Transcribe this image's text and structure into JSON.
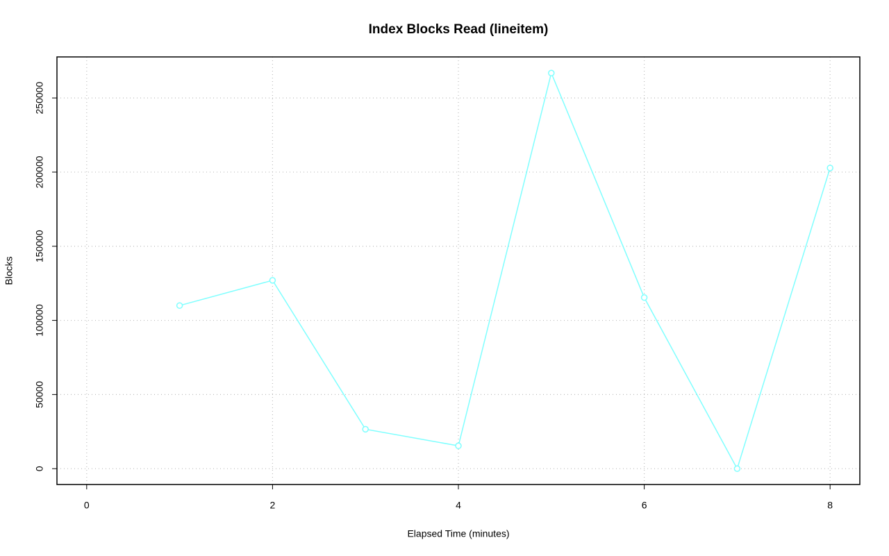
{
  "chart_data": {
    "type": "line",
    "title": "Index Blocks Read (lineitem)",
    "x_label": "Elapsed Time (minutes)",
    "y_label": "Blocks",
    "x": [
      1,
      2,
      3,
      4,
      5,
      6,
      7,
      8
    ],
    "series": [
      {
        "color": "#7fffff",
        "values": [
          110000,
          127000,
          26600,
          15400,
          266800,
          115400,
          0,
          202800
        ]
      }
    ],
    "xlim": [
      -0.32,
      8.32
    ],
    "xticks": [
      0,
      2,
      4,
      6,
      8
    ],
    "ylim": [
      -10680,
      277680
    ],
    "yticks": [
      0,
      50000,
      100000,
      150000,
      200000,
      250000
    ],
    "grid": true
  }
}
